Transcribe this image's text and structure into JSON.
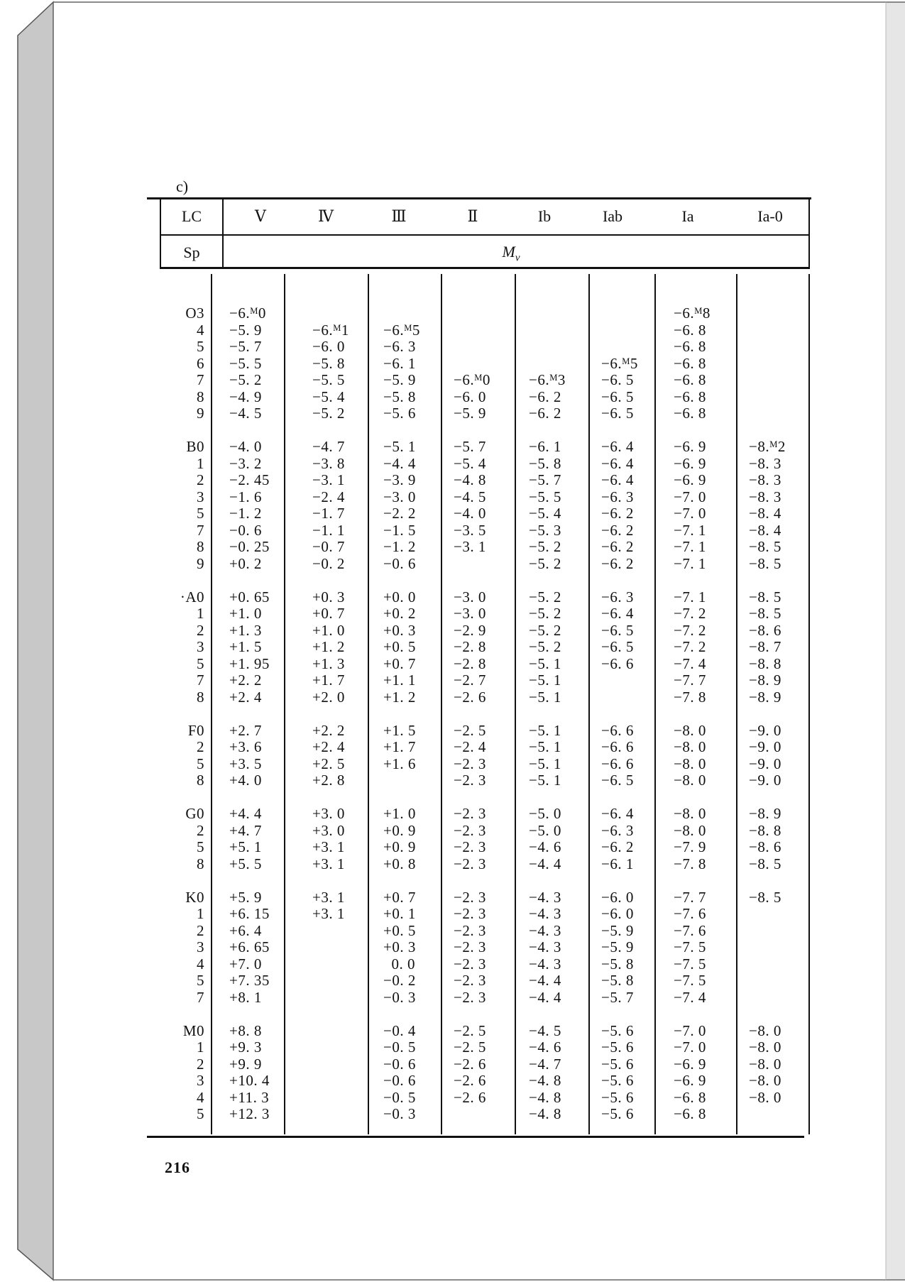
{
  "section_label": "c)",
  "header": {
    "lc_label": "LC",
    "sp_label": "Sp",
    "quantity_label": "M",
    "quantity_subscript": "v",
    "columns": [
      "Ⅴ",
      "Ⅳ",
      "Ⅲ",
      "Ⅱ",
      "Ib",
      "Iab",
      "Ia",
      "Ia-0"
    ]
  },
  "groups": [
    {
      "rows": [
        [
          "O3",
          "−6.ᴹ0",
          "",
          "",
          "",
          "",
          "",
          "−6.ᴹ8",
          ""
        ],
        [
          "4",
          "−5. 9",
          "−6.ᴹ1",
          "−6.ᴹ5",
          "",
          "",
          "",
          "−6. 8",
          ""
        ],
        [
          "5",
          "−5. 7",
          "−6. 0",
          "−6. 3",
          "",
          "",
          "",
          "−6. 8",
          ""
        ],
        [
          "6",
          "−5. 5",
          "−5. 8",
          "−6. 1",
          "",
          "",
          "−6.ᴹ5",
          "−6. 8",
          ""
        ],
        [
          "7",
          "−5. 2",
          "−5. 5",
          "−5. 9",
          "−6.ᴹ0",
          "−6.ᴹ3",
          "−6. 5",
          "−6. 8",
          ""
        ],
        [
          "8",
          "−4. 9",
          "−5. 4",
          "−5. 8",
          "−6. 0",
          "−6. 2",
          "−6. 5",
          "−6. 8",
          ""
        ],
        [
          "9",
          "−4. 5",
          "−5. 2",
          "−5. 6",
          "−5. 9",
          "−6. 2",
          "−6. 5",
          "−6. 8",
          ""
        ]
      ]
    },
    {
      "rows": [
        [
          "B0",
          "−4. 0",
          "−4. 7",
          "−5. 1",
          "−5. 7",
          "−6. 1",
          "−6. 4",
          "−6. 9",
          "−8.ᴹ2"
        ],
        [
          "1",
          "−3. 2",
          "−3. 8",
          "−4. 4",
          "−5. 4",
          "−5. 8",
          "−6. 4",
          "−6. 9",
          "−8. 3"
        ],
        [
          "2",
          "−2. 45",
          "−3. 1",
          "−3. 9",
          "−4. 8",
          "−5. 7",
          "−6. 4",
          "−6. 9",
          "−8. 3"
        ],
        [
          "3",
          "−1. 6",
          "−2. 4",
          "−3. 0",
          "−4. 5",
          "−5. 5",
          "−6. 3",
          "−7. 0",
          "−8. 3"
        ],
        [
          "5",
          "−1. 2",
          "−1. 7",
          "−2. 2",
          "−4. 0",
          "−5. 4",
          "−6. 2",
          "−7. 0",
          "−8. 4"
        ],
        [
          "7",
          "−0. 6",
          "−1. 1",
          "−1. 5",
          "−3. 5",
          "−5. 3",
          "−6. 2",
          "−7. 1",
          "−8. 4"
        ],
        [
          "8",
          "−0. 25",
          "−0. 7",
          "−1. 2",
          "−3. 1",
          "−5. 2",
          "−6. 2",
          "−7. 1",
          "−8. 5"
        ],
        [
          "9",
          "+0. 2",
          "−0. 2",
          "−0. 6",
          "",
          "−5. 2",
          "−6. 2",
          "−7. 1",
          "−8. 5"
        ]
      ]
    },
    {
      "rows": [
        [
          "·A0",
          "+0. 65",
          "+0. 3",
          "+0. 0",
          "−3. 0",
          "−5. 2",
          "−6. 3",
          "−7. 1",
          "−8. 5"
        ],
        [
          "1",
          "+1. 0",
          "+0. 7",
          "+0. 2",
          "−3. 0",
          "−5. 2",
          "−6. 4",
          "−7. 2",
          "−8. 5"
        ],
        [
          "2",
          "+1. 3",
          "+1. 0",
          "+0. 3",
          "−2. 9",
          "−5. 2",
          "−6. 5",
          "−7. 2",
          "−8. 6"
        ],
        [
          "3",
          "+1. 5",
          "+1. 2",
          "+0. 5",
          "−2. 8",
          "−5. 2",
          "−6. 5",
          "−7. 2",
          "−8. 7"
        ],
        [
          "5",
          "+1. 95",
          "+1. 3",
          "+0. 7",
          "−2. 8",
          "−5. 1",
          "−6. 6",
          "−7. 4",
          "−8. 8"
        ],
        [
          "7",
          "+2. 2",
          "+1. 7",
          "+1. 1",
          "−2. 7",
          "−5. 1",
          "",
          "−7. 7",
          "−8. 9"
        ],
        [
          "8",
          "+2. 4",
          "+2. 0",
          "+1. 2",
          "−2. 6",
          "−5. 1",
          "",
          "−7. 8",
          "−8. 9"
        ]
      ]
    },
    {
      "rows": [
        [
          "F0",
          "+2. 7",
          "+2. 2",
          "+1. 5",
          "−2. 5",
          "−5. 1",
          "−6. 6",
          "−8. 0",
          "−9. 0"
        ],
        [
          "2",
          "+3. 6",
          "+2. 4",
          "+1. 7",
          "−2. 4",
          "−5. 1",
          "−6. 6",
          "−8. 0",
          "−9. 0"
        ],
        [
          "5",
          "+3. 5",
          "+2. 5",
          "+1. 6",
          "−2. 3",
          "−5. 1",
          "−6. 6",
          "−8. 0",
          "−9. 0"
        ],
        [
          "8",
          "+4. 0",
          "+2. 8",
          "",
          "−2. 3",
          "−5. 1",
          "−6. 5",
          "−8. 0",
          "−9. 0"
        ]
      ]
    },
    {
      "rows": [
        [
          "G0",
          "+4. 4",
          "+3. 0",
          "+1. 0",
          "−2. 3",
          "−5. 0",
          "−6. 4",
          "−8. 0",
          "−8. 9"
        ],
        [
          "2",
          "+4. 7",
          "+3. 0",
          "+0. 9",
          "−2. 3",
          "−5. 0",
          "−6. 3",
          "−8. 0",
          "−8. 8"
        ],
        [
          "5",
          "+5. 1",
          "+3. 1",
          "+0. 9",
          "−2. 3",
          "−4. 6",
          "−6. 2",
          "−7. 9",
          "−8. 6"
        ],
        [
          "8",
          "+5. 5",
          "+3. 1",
          "+0. 8",
          "−2. 3",
          "−4. 4",
          "−6. 1",
          "−7. 8",
          "−8. 5"
        ]
      ]
    },
    {
      "rows": [
        [
          "K0",
          "+5. 9",
          "+3. 1",
          "+0. 7",
          "−2. 3",
          "−4. 3",
          "−6. 0",
          "−7. 7",
          "−8. 5"
        ],
        [
          "1",
          "+6. 15",
          "+3. 1",
          "+0. 1",
          "−2. 3",
          "−4. 3",
          "−6. 0",
          "−7. 6",
          ""
        ],
        [
          "2",
          "+6. 4",
          "",
          "+0. 5",
          "−2. 3",
          "−4. 3",
          "−5. 9",
          "−7. 6",
          ""
        ],
        [
          "3",
          "+6. 65",
          "",
          "+0. 3",
          "−2. 3",
          "−4. 3",
          "−5. 9",
          "−7. 5",
          ""
        ],
        [
          "4",
          "+7. 0",
          "",
          "  0. 0",
          "−2. 3",
          "−4. 3",
          "−5. 8",
          "−7. 5",
          ""
        ],
        [
          "5",
          "+7. 35",
          "",
          "−0. 2",
          "−2. 3",
          "−4. 4",
          "−5. 8",
          "−7. 5",
          ""
        ],
        [
          "7",
          "+8. 1",
          "",
          "−0. 3",
          "−2. 3",
          "−4. 4",
          "−5. 7",
          "−7. 4",
          ""
        ]
      ]
    },
    {
      "rows": [
        [
          "M0",
          "+8. 8",
          "",
          "−0. 4",
          "−2. 5",
          "−4. 5",
          "−5. 6",
          "−7. 0",
          "−8. 0"
        ],
        [
          "1",
          "+9. 3",
          "",
          "−0. 5",
          "−2. 5",
          "−4. 6",
          "−5. 6",
          "−7. 0",
          "−8. 0"
        ],
        [
          "2",
          "+9. 9",
          "",
          "−0. 6",
          "−2. 6",
          "−4. 7",
          "−5. 6",
          "−6. 9",
          "−8. 0"
        ],
        [
          "3",
          "+10. 4",
          "",
          "−0. 6",
          "−2. 6",
          "−4. 8",
          "−5. 6",
          "−6. 9",
          "−8. 0"
        ],
        [
          "4",
          "+11. 3",
          "",
          "−0. 5",
          "−2. 6",
          "−4. 8",
          "−5. 6",
          "−6. 8",
          "−8. 0"
        ],
        [
          "5",
          "+12. 3",
          "",
          "−0. 3",
          "",
          "−4. 8",
          "−5. 6",
          "−6. 8",
          ""
        ]
      ]
    }
  ],
  "page_number": "216"
}
